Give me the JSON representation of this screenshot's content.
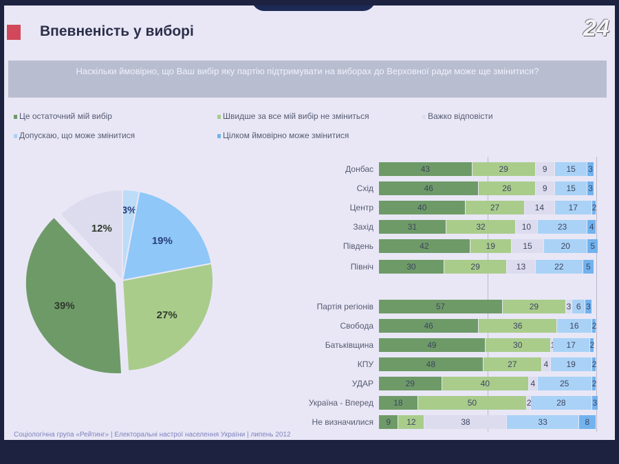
{
  "title": "Впевненість у виборі",
  "channel_logo": "24",
  "question": "Наскільки ймовірно, що Ваш вибір яку партію підтримувати на виборах до Верховної ради може ще змінитися?",
  "footer": "Соціологічна група «Рейтинг» | Електоральні настрої населення України | липень 2012",
  "legend": [
    {
      "label": "Це остаточний мій вибір",
      "color": "#6e9a68"
    },
    {
      "label": "Швидше за все мій вибір не зміниться",
      "color": "#a9cc8b"
    },
    {
      "label": "Важко відповісти",
      "color": "#dcdcee"
    },
    {
      "label": "Допускаю, що може змінитися",
      "color": "#a9d2f6"
    },
    {
      "label": "Цілком ймовірно може змінитися",
      "color": "#72b2ee"
    }
  ],
  "chart_data": [
    {
      "type": "pie",
      "categories": [
        "Цілком ймовірно може змінитися",
        "Допускаю, що може змінитися",
        "Швидше за все мій вибір не зміниться",
        "Це остаточний мій вибір",
        "Важко відповісти"
      ],
      "values": [
        3,
        19,
        27,
        39,
        12
      ],
      "labels": [
        "3%",
        "19%",
        "27%",
        "39%",
        "12%"
      ],
      "colors": [
        "#bcdcf8",
        "#8ec7f8",
        "#a9cc8b",
        "#6e9a68",
        "#dcdcee"
      ],
      "exploded": "Це остаточний мій вибір"
    },
    {
      "type": "bar",
      "orientation": "horizontal",
      "stacked": true,
      "xlim": [
        0,
        100
      ],
      "categories": [
        "Донбас",
        "Схід",
        "Центр",
        "Захід",
        "Південь",
        "Північ",
        "Партія регіонів",
        "Свобода",
        "Батьківщина",
        "КПУ",
        "УДАР",
        "Україна - Вперед",
        "Не визначилися"
      ],
      "series": [
        {
          "name": "Це остаточний мій вибір",
          "values": [
            43,
            46,
            40,
            31,
            42,
            30,
            57,
            46,
            49,
            48,
            29,
            18,
            9
          ]
        },
        {
          "name": "Швидше за все мій вибір не зміниться",
          "values": [
            29,
            26,
            27,
            32,
            19,
            29,
            29,
            36,
            30,
            27,
            40,
            50,
            12
          ]
        },
        {
          "name": "Важко відповісти",
          "values": [
            9,
            9,
            14,
            10,
            15,
            13,
            3,
            null,
            1,
            4,
            4,
            2,
            38
          ]
        },
        {
          "name": "Допускаю, що може змінитися",
          "values": [
            15,
            15,
            17,
            23,
            20,
            22,
            6,
            16,
            17,
            19,
            25,
            28,
            33
          ]
        },
        {
          "name": "Цілком ймовірно може змінитися",
          "values": [
            3,
            3,
            2,
            4,
            5,
            5,
            3,
            2,
            2,
            2,
            2,
            3,
            8
          ]
        }
      ]
    }
  ]
}
